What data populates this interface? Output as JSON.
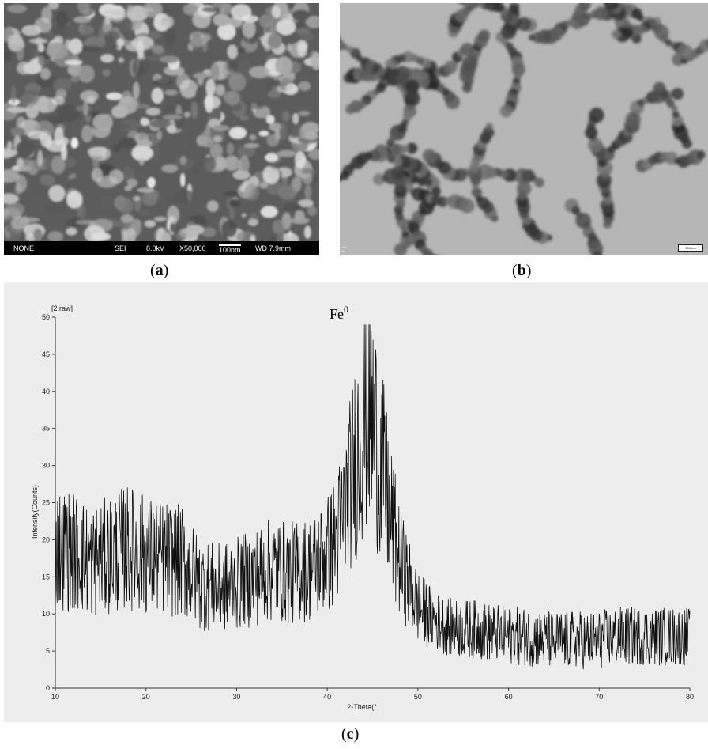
{
  "panel_a": {
    "caption_open": "(",
    "caption_letter": "a",
    "caption_close": ")",
    "info_bar": {
      "name": "NONE",
      "detector": "SEI",
      "voltage": "8.0kV",
      "magnification": "X50,000",
      "scale": "100nm",
      "working_distance": "WD 7.9mm"
    }
  },
  "panel_b": {
    "caption_open": "(",
    "caption_letter": "b",
    "caption_close": ")",
    "scale_text": "200 nm"
  },
  "panel_c": {
    "caption_open": "(",
    "caption_letter": "c",
    "caption_close": ")"
  },
  "chart_data": {
    "type": "line",
    "file_label": "[2.raw]",
    "annotation": "Fe",
    "annotation_superscript": "0",
    "xlabel": "2-Theta(°",
    "ylabel": "Intensity(Counts)",
    "xlim": [
      10,
      80
    ],
    "ylim": [
      0,
      50
    ],
    "x_ticks": [
      10,
      20,
      30,
      40,
      50,
      60,
      70,
      80
    ],
    "y_ticks": [
      0,
      5,
      10,
      15,
      20,
      25,
      30,
      35,
      40,
      45,
      50
    ],
    "grid": false,
    "series": [
      {
        "x": [
          10,
          12,
          14,
          16,
          18,
          20,
          22,
          24,
          26,
          28,
          30,
          32,
          34,
          36,
          38,
          40,
          41,
          42,
          43,
          44,
          44.5,
          45,
          46,
          47,
          48,
          50,
          52,
          54,
          56,
          58,
          60,
          62,
          64,
          66,
          68,
          70,
          72,
          74,
          76,
          78,
          80
        ],
        "values": [
          19,
          18.5,
          17,
          18,
          19,
          18,
          17.5,
          17,
          14,
          13.5,
          14,
          15,
          16,
          15.5,
          16,
          18,
          20,
          24,
          30,
          36,
          38,
          36,
          30,
          23,
          17,
          11,
          9,
          8,
          8,
          7.5,
          7,
          7,
          6.5,
          6.5,
          6.5,
          6.5,
          7,
          7,
          7,
          7,
          7
        ]
      }
    ]
  }
}
